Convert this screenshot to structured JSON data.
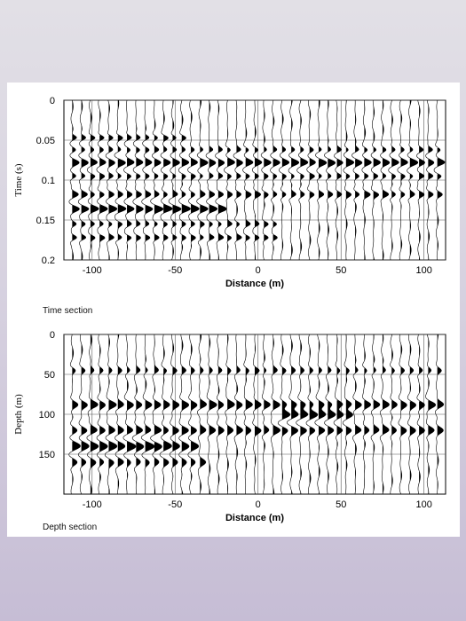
{
  "chart_data": [
    {
      "type": "wiggle-trace",
      "panel_caption": "Time section",
      "ylabel": "Time (s)",
      "xlabel": "Distance (m)",
      "yticks": [
        "0",
        "0.05",
        "0.1",
        "0.15",
        "0.2"
      ],
      "ytick_values": [
        0,
        0.05,
        0.1,
        0.15,
        0.2
      ],
      "xticks": [
        "-100",
        "-50",
        "0",
        "50",
        "100"
      ],
      "xtick_values": [
        -100,
        -50,
        0,
        50,
        100
      ],
      "xlim": [
        -117,
        113
      ],
      "ylim": [
        0,
        0.2
      ],
      "y_inverted": true,
      "grid": true,
      "trace_spacing_m": 5.5,
      "events": [
        {
          "y": 0.047,
          "amp": 0.9,
          "width": 0.006,
          "x_from": -112,
          "x_to": -45
        },
        {
          "y": 0.062,
          "amp": 0.7,
          "width": 0.006,
          "x_from": -112,
          "x_to": 110
        },
        {
          "y": 0.078,
          "amp": 1.4,
          "width": 0.008,
          "x_from": -112,
          "x_to": 110
        },
        {
          "y": 0.095,
          "amp": 0.8,
          "width": 0.006,
          "x_from": -112,
          "x_to": 110
        },
        {
          "y": 0.118,
          "amp": 1.0,
          "width": 0.007,
          "x_from": -112,
          "x_to": 110
        },
        {
          "y": 0.136,
          "amp": 1.6,
          "width": 0.008,
          "x_from": -112,
          "x_to": -20
        },
        {
          "y": 0.155,
          "amp": 0.8,
          "width": 0.006,
          "x_from": -112,
          "x_to": 10
        },
        {
          "y": 0.172,
          "amp": 0.9,
          "width": 0.006,
          "x_from": -112,
          "x_to": 10
        }
      ]
    },
    {
      "type": "wiggle-trace",
      "panel_caption": "Depth section",
      "ylabel": "Depth (m)",
      "xlabel": "Distance (m)",
      "yticks": [
        "0",
        "50",
        "100",
        "150"
      ],
      "ytick_values": [
        0,
        50,
        100,
        150
      ],
      "xticks": [
        "-100",
        "-50",
        "0",
        "50",
        "100"
      ],
      "xtick_values": [
        -100,
        -50,
        0,
        50,
        100
      ],
      "xlim": [
        -117,
        113
      ],
      "ylim": [
        0,
        200
      ],
      "y_inverted": true,
      "grid": true,
      "trace_spacing_m": 5.5,
      "events": [
        {
          "y": 45,
          "amp": 0.7,
          "width": 7,
          "x_from": -112,
          "x_to": 110
        },
        {
          "y": 88,
          "amp": 1.3,
          "width": 9,
          "x_from": -112,
          "x_to": 110
        },
        {
          "y": 100,
          "amp": 1.6,
          "width": 10,
          "x_from": 10,
          "x_to": 55
        },
        {
          "y": 120,
          "amp": 1.2,
          "width": 9,
          "x_from": -112,
          "x_to": 110
        },
        {
          "y": 140,
          "amp": 1.6,
          "width": 10,
          "x_from": -112,
          "x_to": -40
        },
        {
          "y": 160,
          "amp": 1.0,
          "width": 9,
          "x_from": -112,
          "x_to": -30
        }
      ]
    }
  ]
}
